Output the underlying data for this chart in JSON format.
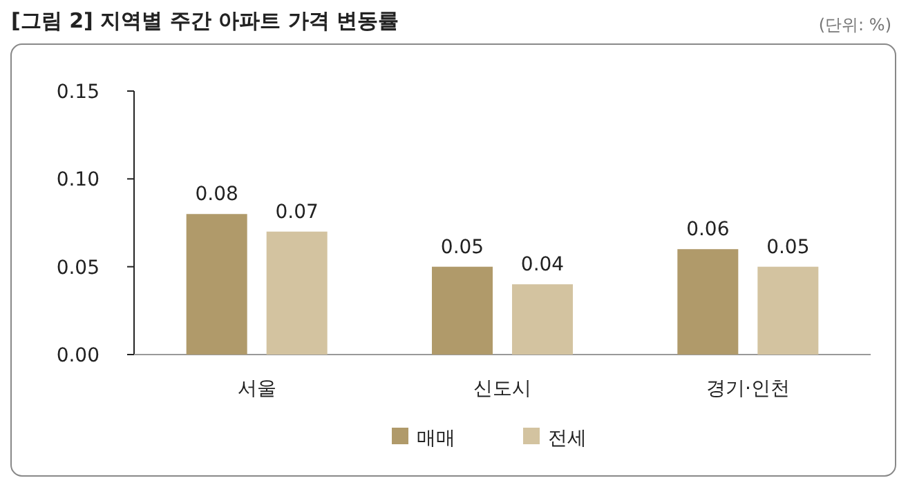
{
  "chart_data": {
    "type": "bar",
    "title": "[그림 2] 지역별 주간 아파트 가격 변동률",
    "annotations": [
      "(단위: %)"
    ],
    "categories": [
      "서울",
      "신도시",
      "경기·인천"
    ],
    "series": [
      {
        "name": "매매",
        "color": "#b09a6a",
        "values": [
          0.08,
          0.05,
          0.06
        ],
        "value_labels": [
          "0.08",
          "0.05",
          "0.06"
        ]
      },
      {
        "name": "전세",
        "color": "#d3c3a0",
        "values": [
          0.07,
          0.04,
          0.05
        ],
        "value_labels": [
          "0.07",
          "0.04",
          "0.05"
        ]
      }
    ],
    "ylim": [
      0,
      0.15
    ],
    "yticks": [
      {
        "value": 0,
        "label": "0.00"
      },
      {
        "value": 0.05,
        "label": "0.05"
      },
      {
        "value": 0.1,
        "label": "0.10"
      },
      {
        "value": 0.15,
        "label": "0.15"
      }
    ],
    "legend": "bottom",
    "grid": false
  }
}
